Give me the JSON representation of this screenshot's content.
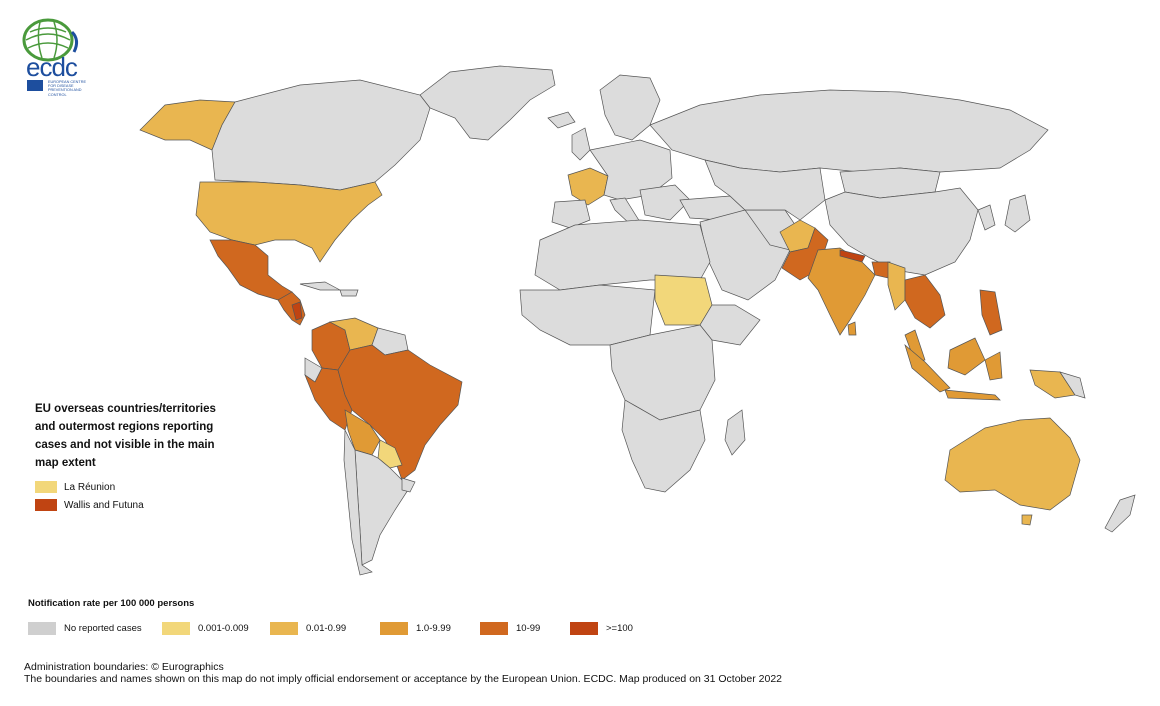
{
  "logo": {
    "text": "ecdc",
    "subtext": "EUROPEAN CENTRE FOR DISEASE PREVENTION AND CONTROL",
    "globe_color": "#4a9a3c",
    "brand_color": "#1d4e9e"
  },
  "colors": {
    "none": "#dcdcdc",
    "r1": "#f2d77a",
    "r2": "#e9b650",
    "r3": "#e09a35",
    "r4": "#d0681f",
    "r5": "#c04412"
  },
  "eu_box": {
    "title": "EU overseas countries/territories and outermost regions reporting cases and not visible in the main map extent",
    "items": [
      {
        "label": "La Réunion",
        "color": "#f2d77a"
      },
      {
        "label": "Wallis and Futuna",
        "color": "#c04412"
      }
    ]
  },
  "legend": {
    "title": "Notification rate per 100 000 persons",
    "items": [
      {
        "label": "No reported cases",
        "color": "#cfcfcf"
      },
      {
        "label": "0.001-0.009",
        "color": "#f2d77a"
      },
      {
        "label": "0.01-0.99",
        "color": "#e9b650"
      },
      {
        "label": "1.0-9.99",
        "color": "#e09a35"
      },
      {
        "label": "10-99",
        "color": "#d0681f"
      },
      {
        "label": ">=100",
        "color": "#c04412"
      }
    ]
  },
  "footer": {
    "line1": "Administration boundaries: © Eurographics",
    "line2": "The boundaries and names shown on this map do not imply official endorsement or acceptance by the European Union. ECDC. Map produced on 31 October 2022"
  }
}
